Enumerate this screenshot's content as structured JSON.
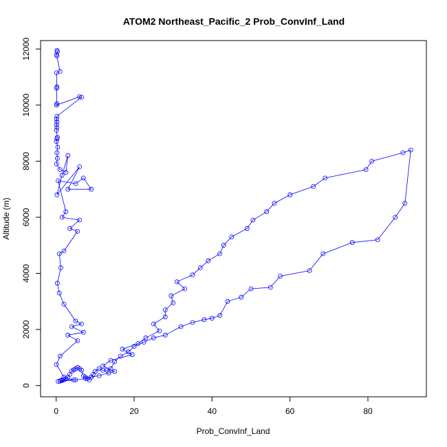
{
  "chart_data": {
    "type": "line",
    "title": "ATOM2 Northeast_Pacific_2 Prob_ConvInf_Land",
    "xlabel": "Prob_ConvInf_Land",
    "ylabel": "Altitude (m)",
    "xlim": [
      -4,
      95
    ],
    "ylim": [
      -400,
      12300
    ],
    "x_ticks": [
      0,
      20,
      40,
      60,
      80
    ],
    "y_ticks": [
      0,
      2000,
      4000,
      6000,
      8000,
      10000,
      12000
    ],
    "grid": false,
    "legend": "none",
    "series_color": "#0000ff",
    "x": [
      0.2,
      0.3,
      0.1,
      0.2,
      1.0,
      0.1,
      0.2,
      0.1,
      0.2,
      0.1,
      6.0,
      6.5,
      0.2,
      0.1,
      0.2,
      0.1,
      0.2,
      0.1,
      0.3,
      0.2,
      0.1,
      0.4,
      0.2,
      0.3,
      0.1,
      1.0,
      2.5,
      3.0,
      1.5,
      0.2,
      6.0,
      3.0,
      9.0,
      7.0,
      5.0,
      0.5,
      2.5,
      1.5,
      6.0,
      3.5,
      5.5,
      2.0,
      0.8,
      1.2,
      0.3,
      0.8,
      2.0,
      5.0,
      6.5,
      4.0,
      7.0,
      3.0,
      5.5,
      1.0,
      0.1,
      2.0,
      4.5,
      1.5,
      1.0,
      5.0,
      7.5,
      9.0,
      11.0,
      13.5,
      15.0,
      12.0,
      14.0,
      19.5,
      17.0,
      21.0,
      23.0,
      26.5,
      25.0,
      28.0,
      28.0,
      30.0,
      29.5,
      33.0,
      31.0,
      35.0,
      37.0,
      39.0,
      42.0,
      43.0,
      45.0,
      49.0,
      50.5,
      54.0,
      56.0,
      60.0,
      66.0,
      69.0,
      79.5,
      81.0,
      89.0,
      91.0,
      89.5,
      87.0,
      82.5,
      76.0,
      68.5,
      65.0,
      57.5,
      55.0,
      50.0,
      47.5,
      44.0,
      42.0,
      40.0,
      38.0,
      35.0,
      32.0,
      28.0,
      25.0,
      22.5,
      20.0,
      18.5,
      16.5,
      15.0,
      14.0,
      13.0,
      12.0,
      11.0,
      10.0,
      9.5,
      9.0,
      8.5,
      8.0,
      7.5,
      7.0,
      6.5,
      6.0,
      5.5,
      5.0,
      4.5,
      4.0,
      3.5,
      3.0,
      2.5,
      2.0,
      1.5,
      1.0,
      0.5
    ],
    "y": [
      11950,
      11900,
      11800,
      11750,
      11200,
      11150,
      10650,
      10600,
      10050,
      10000,
      10300,
      10280,
      9600,
      9500,
      9400,
      9300,
      9200,
      9100,
      8850,
      8800,
      8700,
      8500,
      8300,
      8100,
      7900,
      7700,
      7600,
      8200,
      7500,
      6800,
      7800,
      7000,
      7000,
      7400,
      7200,
      7300,
      6200,
      6000,
      5900,
      5600,
      5500,
      4800,
      4700,
      4200,
      3650,
      3300,
      2900,
      2300,
      2200,
      2100,
      1900,
      1800,
      1600,
      1050,
      750,
      300,
      200,
      200,
      160,
      200,
      250,
      300,
      350,
      450,
      500,
      700,
      900,
      1100,
      1300,
      1500,
      1700,
      1950,
      2200,
      2450,
      2700,
      2950,
      3200,
      3450,
      3700,
      3950,
      4200,
      4450,
      4700,
      5000,
      5300,
      5600,
      5900,
      6200,
      6500,
      6800,
      7100,
      7400,
      7700,
      8000,
      8300,
      8400,
      6500,
      6000,
      5200,
      5100,
      4700,
      4100,
      3900,
      3500,
      3450,
      3150,
      3000,
      2500,
      2400,
      2350,
      2250,
      2100,
      1800,
      1700,
      1550,
      1400,
      1200,
      1050,
      850,
      600,
      550,
      550,
      600,
      500,
      400,
      300,
      200,
      250,
      300,
      350,
      550,
      600,
      650,
      600,
      560,
      520,
      400,
      300,
      250,
      200,
      180,
      170,
      150
    ]
  }
}
